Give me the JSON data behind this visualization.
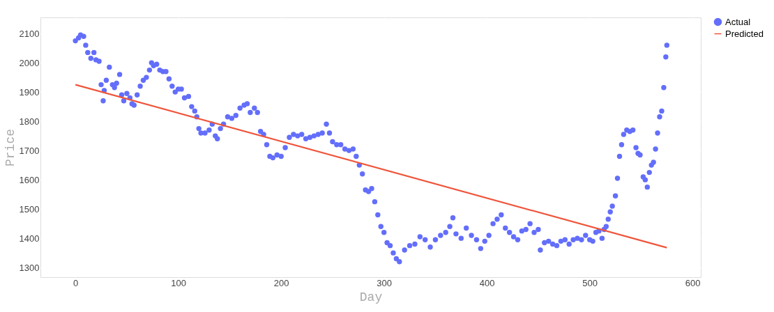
{
  "chart_data": {
    "type": "scatter",
    "xlabel": "Day",
    "ylabel": "Price",
    "xlim": [
      -34,
      608
    ],
    "ylim": [
      1267,
      2155
    ],
    "xticks": [
      0,
      100,
      200,
      300,
      400,
      500,
      600
    ],
    "yticks": [
      1300,
      1400,
      1500,
      1600,
      1700,
      1800,
      1900,
      2000,
      2100
    ],
    "grid": true,
    "legend": "top right",
    "series": [
      {
        "name": "Actual",
        "marker": "circle",
        "color": "#636efa",
        "x": [
          0,
          3,
          5,
          8,
          10,
          12,
          15,
          18,
          20,
          23,
          25,
          27,
          28,
          30,
          33,
          36,
          38,
          40,
          43,
          45,
          47,
          50,
          53,
          55,
          57,
          60,
          63,
          66,
          69,
          72,
          74,
          76,
          79,
          82,
          85,
          88,
          91,
          94,
          97,
          100,
          103,
          106,
          110,
          113,
          116,
          118,
          120,
          122,
          126,
          130,
          133,
          136,
          138,
          141,
          144,
          148,
          152,
          156,
          160,
          164,
          167,
          170,
          174,
          177,
          180,
          183,
          186,
          189,
          192,
          196,
          200,
          204,
          208,
          212,
          216,
          220,
          224,
          228,
          232,
          236,
          240,
          244,
          247,
          250,
          254,
          258,
          262,
          266,
          270,
          273,
          276,
          279,
          282,
          285,
          288,
          291,
          294,
          297,
          300,
          303,
          306,
          309,
          312,
          315,
          320,
          325,
          330,
          335,
          340,
          345,
          350,
          355,
          360,
          364,
          367,
          370,
          375,
          380,
          385,
          390,
          394,
          398,
          402,
          406,
          410,
          414,
          418,
          422,
          426,
          430,
          434,
          438,
          442,
          446,
          450,
          452,
          456,
          460,
          464,
          468,
          472,
          476,
          480,
          484,
          488,
          492,
          496,
          500,
          503,
          506,
          509,
          512,
          514,
          516,
          518,
          520,
          522,
          525,
          527,
          529,
          531,
          533,
          536,
          539,
          542,
          545,
          547,
          549,
          552,
          554,
          556,
          558,
          560,
          562,
          564,
          566,
          568,
          570,
          572,
          574,
          575
        ],
        "values": [
          2075,
          2085,
          2095,
          2090,
          2060,
          2035,
          2015,
          2035,
          2010,
          2005,
          1925,
          1870,
          1905,
          1940,
          1985,
          1925,
          1915,
          1930,
          1960,
          1890,
          1870,
          1895,
          1880,
          1860,
          1855,
          1890,
          1920,
          1940,
          1950,
          1975,
          2000,
          1990,
          1995,
          1975,
          1970,
          1970,
          1945,
          1920,
          1900,
          1910,
          1910,
          1880,
          1885,
          1850,
          1835,
          1815,
          1775,
          1760,
          1760,
          1770,
          1790,
          1750,
          1740,
          1775,
          1790,
          1815,
          1810,
          1820,
          1845,
          1855,
          1860,
          1830,
          1845,
          1830,
          1765,
          1755,
          1720,
          1680,
          1675,
          1685,
          1680,
          1710,
          1745,
          1755,
          1750,
          1755,
          1740,
          1745,
          1750,
          1755,
          1760,
          1790,
          1760,
          1730,
          1720,
          1720,
          1705,
          1700,
          1705,
          1680,
          1650,
          1620,
          1565,
          1560,
          1570,
          1525,
          1480,
          1440,
          1420,
          1385,
          1375,
          1350,
          1330,
          1320,
          1360,
          1375,
          1380,
          1405,
          1395,
          1370,
          1395,
          1410,
          1420,
          1440,
          1470,
          1415,
          1400,
          1435,
          1410,
          1395,
          1365,
          1390,
          1410,
          1450,
          1465,
          1480,
          1435,
          1420,
          1405,
          1395,
          1425,
          1430,
          1450,
          1420,
          1430,
          1360,
          1385,
          1390,
          1380,
          1375,
          1390,
          1395,
          1380,
          1395,
          1400,
          1395,
          1410,
          1395,
          1390,
          1420,
          1425,
          1400,
          1430,
          1440,
          1465,
          1490,
          1510,
          1545,
          1605,
          1680,
          1720,
          1755,
          1770,
          1765,
          1770,
          1710,
          1690,
          1685,
          1610,
          1600,
          1575,
          1625,
          1650,
          1660,
          1705,
          1760,
          1815,
          1835,
          1915,
          2020,
          2060
        ]
      },
      {
        "name": "Predicted",
        "type": "line",
        "line_style": "solid",
        "color": "#ef553b",
        "x": [
          0,
          575
        ],
        "values": [
          1925,
          1368
        ]
      }
    ]
  }
}
